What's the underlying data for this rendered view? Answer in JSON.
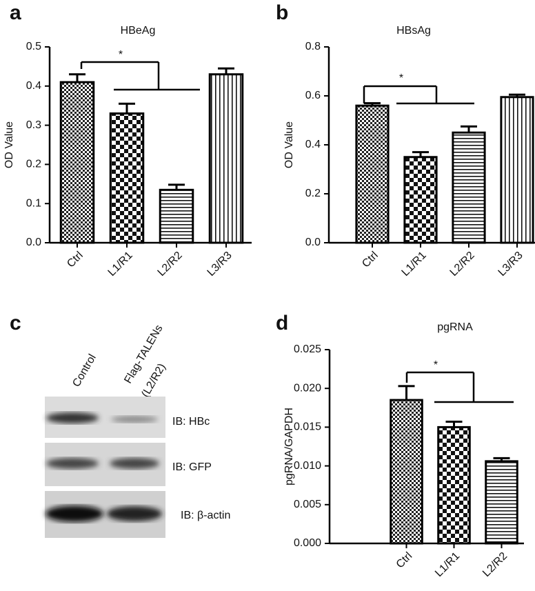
{
  "chart_data": [
    {
      "type": "bar",
      "panel_label": "a",
      "title": "HBeAg",
      "y_label": "OD Value",
      "categories": [
        "Ctrl",
        "L1/R1",
        "L2/R2",
        "L3/R3"
      ],
      "values": [
        0.41,
        0.33,
        0.135,
        0.43
      ],
      "errors": [
        0.02,
        0.025,
        0.013,
        0.015
      ],
      "patterns": [
        "crosshatch",
        "checker",
        "hstripes",
        "vstripes"
      ],
      "color": "#000000",
      "ylim": [
        0,
        0.5
      ],
      "yticks": [
        {
          "value": 0,
          "label": "0.0"
        },
        0.1,
        0.2,
        0.3,
        0.4,
        0.5
      ],
      "annotation": "*"
    },
    {
      "type": "bar",
      "panel_label": "b",
      "title": "HBsAg",
      "y_label": "OD Value",
      "categories": [
        "Ctrl",
        "L1/R1",
        "L2/R2",
        "L3/R3"
      ],
      "values": [
        0.56,
        0.35,
        0.45,
        0.595
      ],
      "errors": [
        0.01,
        0.02,
        0.025,
        0.01
      ],
      "patterns": [
        "crosshatch",
        "checker",
        "hstripes",
        "vstripes"
      ],
      "color": "#000000",
      "ylim": [
        0,
        0.8
      ],
      "yticks": [
        {
          "value": 0,
          "label": "0.0"
        },
        0.2,
        0.4,
        0.6,
        0.8
      ],
      "annotation": "*"
    },
    {
      "type": "bar",
      "panel_label": "d",
      "title": "pgRNA",
      "y_label": "pgRNA/GAPDH",
      "categories": [
        "Ctrl",
        "L1/R1",
        "L2/R2"
      ],
      "values": [
        0.0185,
        0.015,
        0.0106
      ],
      "errors": [
        0.0018,
        0.0007,
        0.0004
      ],
      "patterns": [
        "crosshatch",
        "checker",
        "hstripes"
      ],
      "color": "#000000",
      "ylim": [
        0,
        0.025
      ],
      "yticks": [
        {
          "value": 0,
          "label": "0.000"
        },
        0.005,
        {
          "value": 0.01,
          "label": "0.010"
        },
        0.015,
        {
          "value": 0.02,
          "label": "0.020"
        },
        0.025
      ],
      "annotation": "*"
    }
  ],
  "blot": {
    "panel_label": "c",
    "lanes": [
      "Control",
      "Flag-TALENs",
      "(L2/R2)"
    ],
    "rows": [
      "IB: HBc",
      "IB: GFP",
      "IB: β-actin"
    ]
  }
}
